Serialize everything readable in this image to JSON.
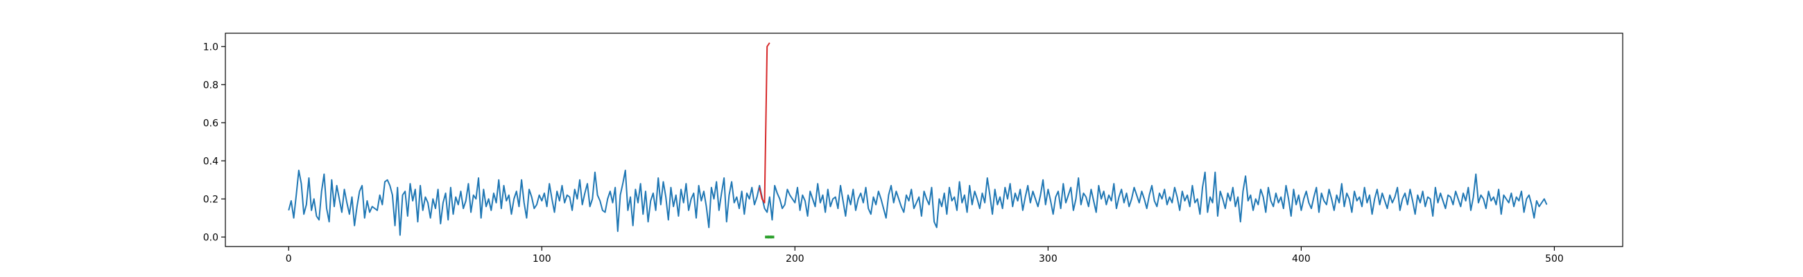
{
  "chart_data": {
    "type": "line",
    "title": "",
    "xlabel": "",
    "ylabel": "",
    "xlim": [
      -25,
      527
    ],
    "ylim": [
      -0.05,
      1.07
    ],
    "x_ticks": [
      0,
      100,
      200,
      300,
      400,
      500
    ],
    "x_tick_labels": [
      "0",
      "100",
      "200",
      "300",
      "400",
      "500"
    ],
    "y_ticks": [
      0.0,
      0.2,
      0.4,
      0.6,
      0.8,
      1.0
    ],
    "y_tick_labels": [
      "0.0",
      "0.2",
      "0.4",
      "0.6",
      "0.8",
      "1.0"
    ],
    "grid": false,
    "series": [
      {
        "role": "signal",
        "color": "#1f77b4",
        "x_start": 0,
        "values": [
          0.14,
          0.19,
          0.1,
          0.22,
          0.35,
          0.28,
          0.12,
          0.17,
          0.31,
          0.14,
          0.2,
          0.11,
          0.09,
          0.24,
          0.33,
          0.15,
          0.08,
          0.3,
          0.16,
          0.27,
          0.2,
          0.13,
          0.25,
          0.18,
          0.12,
          0.21,
          0.06,
          0.16,
          0.24,
          0.27,
          0.1,
          0.19,
          0.13,
          0.16,
          0.15,
          0.14,
          0.22,
          0.17,
          0.29,
          0.3,
          0.27,
          0.22,
          0.06,
          0.26,
          0.01,
          0.22,
          0.24,
          0.11,
          0.28,
          0.19,
          0.25,
          0.08,
          0.27,
          0.14,
          0.21,
          0.18,
          0.1,
          0.2,
          0.15,
          0.25,
          0.07,
          0.18,
          0.23,
          0.09,
          0.26,
          0.12,
          0.21,
          0.17,
          0.24,
          0.15,
          0.19,
          0.28,
          0.13,
          0.22,
          0.2,
          0.31,
          0.1,
          0.25,
          0.16,
          0.2,
          0.14,
          0.23,
          0.18,
          0.3,
          0.15,
          0.27,
          0.19,
          0.22,
          0.12,
          0.2,
          0.24,
          0.16,
          0.3,
          0.18,
          0.1,
          0.25,
          0.21,
          0.15,
          0.17,
          0.22,
          0.19,
          0.23,
          0.16,
          0.28,
          0.2,
          0.13,
          0.24,
          0.19,
          0.27,
          0.18,
          0.22,
          0.21,
          0.14,
          0.25,
          0.2,
          0.3,
          0.17,
          0.23,
          0.28,
          0.16,
          0.2,
          0.34,
          0.22,
          0.19,
          0.14,
          0.13,
          0.2,
          0.24,
          0.18,
          0.26,
          0.03,
          0.22,
          0.28,
          0.35,
          0.14,
          0.21,
          0.06,
          0.25,
          0.18,
          0.28,
          0.12,
          0.24,
          0.08,
          0.19,
          0.23,
          0.14,
          0.31,
          0.17,
          0.29,
          0.21,
          0.09,
          0.26,
          0.16,
          0.22,
          0.11,
          0.25,
          0.18,
          0.28,
          0.14,
          0.2,
          0.23,
          0.1,
          0.27,
          0.19,
          0.24,
          0.16,
          0.05,
          0.26,
          0.2,
          0.29,
          0.14,
          0.23,
          0.31,
          0.08,
          0.22,
          0.29,
          0.18,
          0.21,
          0.15,
          0.24,
          0.12,
          0.23,
          0.2,
          0.26,
          0.17,
          0.21,
          0.27,
          0.21,
          0.15,
          0.13,
          0.21,
          0.09,
          0.27,
          0.23,
          0.2,
          0.15,
          0.17,
          0.25,
          0.22,
          0.2,
          0.18,
          0.26,
          0.14,
          0.22,
          0.19,
          0.11,
          0.24,
          0.2,
          0.16,
          0.28,
          0.18,
          0.22,
          0.13,
          0.25,
          0.16,
          0.2,
          0.21,
          0.15,
          0.27,
          0.19,
          0.11,
          0.22,
          0.17,
          0.25,
          0.14,
          0.2,
          0.23,
          0.18,
          0.26,
          0.15,
          0.12,
          0.21,
          0.17,
          0.24,
          0.2,
          0.15,
          0.1,
          0.22,
          0.27,
          0.18,
          0.24,
          0.2,
          0.16,
          0.13,
          0.22,
          0.19,
          0.25,
          0.15,
          0.18,
          0.21,
          0.11,
          0.24,
          0.2,
          0.17,
          0.26,
          0.08,
          0.05,
          0.2,
          0.16,
          0.23,
          0.12,
          0.26,
          0.19,
          0.21,
          0.14,
          0.29,
          0.18,
          0.22,
          0.13,
          0.27,
          0.17,
          0.24,
          0.2,
          0.15,
          0.23,
          0.18,
          0.31,
          0.22,
          0.12,
          0.25,
          0.17,
          0.21,
          0.15,
          0.26,
          0.2,
          0.28,
          0.16,
          0.23,
          0.19,
          0.25,
          0.14,
          0.21,
          0.27,
          0.18,
          0.24,
          0.2,
          0.16,
          0.22,
          0.3,
          0.17,
          0.25,
          0.19,
          0.12,
          0.21,
          0.24,
          0.15,
          0.28,
          0.18,
          0.22,
          0.26,
          0.14,
          0.2,
          0.31,
          0.17,
          0.23,
          0.21,
          0.16,
          0.25,
          0.19,
          0.13,
          0.27,
          0.2,
          0.24,
          0.17,
          0.22,
          0.19,
          0.28,
          0.15,
          0.21,
          0.25,
          0.18,
          0.23,
          0.16,
          0.2,
          0.26,
          0.22,
          0.18,
          0.24,
          0.2,
          0.15,
          0.22,
          0.27,
          0.19,
          0.16,
          0.23,
          0.2,
          0.25,
          0.17,
          0.21,
          0.18,
          0.26,
          0.21,
          0.14,
          0.24,
          0.19,
          0.22,
          0.16,
          0.27,
          0.18,
          0.2,
          0.12,
          0.26,
          0.34,
          0.13,
          0.21,
          0.18,
          0.34,
          0.11,
          0.24,
          0.2,
          0.15,
          0.23,
          0.19,
          0.26,
          0.16,
          0.21,
          0.08,
          0.24,
          0.32,
          0.19,
          0.22,
          0.14,
          0.2,
          0.17,
          0.25,
          0.21,
          0.13,
          0.26,
          0.19,
          0.16,
          0.23,
          0.18,
          0.21,
          0.15,
          0.27,
          0.2,
          0.11,
          0.25,
          0.17,
          0.22,
          0.14,
          0.2,
          0.24,
          0.18,
          0.15,
          0.21,
          0.26,
          0.13,
          0.23,
          0.19,
          0.17,
          0.25,
          0.2,
          0.14,
          0.22,
          0.18,
          0.28,
          0.16,
          0.23,
          0.2,
          0.13,
          0.24,
          0.19,
          0.21,
          0.16,
          0.26,
          0.18,
          0.22,
          0.12,
          0.2,
          0.25,
          0.17,
          0.23,
          0.19,
          0.15,
          0.22,
          0.18,
          0.21,
          0.26,
          0.14,
          0.2,
          0.23,
          0.17,
          0.25,
          0.19,
          0.12,
          0.22,
          0.18,
          0.24,
          0.16,
          0.21,
          0.2,
          0.11,
          0.26,
          0.18,
          0.23,
          0.19,
          0.15,
          0.22,
          0.21,
          0.17,
          0.24,
          0.2,
          0.16,
          0.23,
          0.19,
          0.26,
          0.14,
          0.21,
          0.33,
          0.18,
          0.22,
          0.2,
          0.15,
          0.24,
          0.19,
          0.21,
          0.17,
          0.25,
          0.12,
          0.22,
          0.2,
          0.18,
          0.23,
          0.16,
          0.21,
          0.19,
          0.24,
          0.13,
          0.2,
          0.22,
          0.17,
          0.1,
          0.19,
          0.16,
          0.18,
          0.2,
          0.17
        ]
      },
      {
        "role": "anomaly",
        "color": "#d62728",
        "x": [
          186,
          187,
          188,
          189,
          190
        ],
        "values": [
          0.26,
          0.2,
          0.18,
          1.0,
          1.02
        ]
      }
    ],
    "markers": {
      "color": "#2ca02c",
      "x": [
        189,
        190,
        191
      ],
      "values": [
        0.0,
        0.0,
        0.0
      ]
    }
  }
}
